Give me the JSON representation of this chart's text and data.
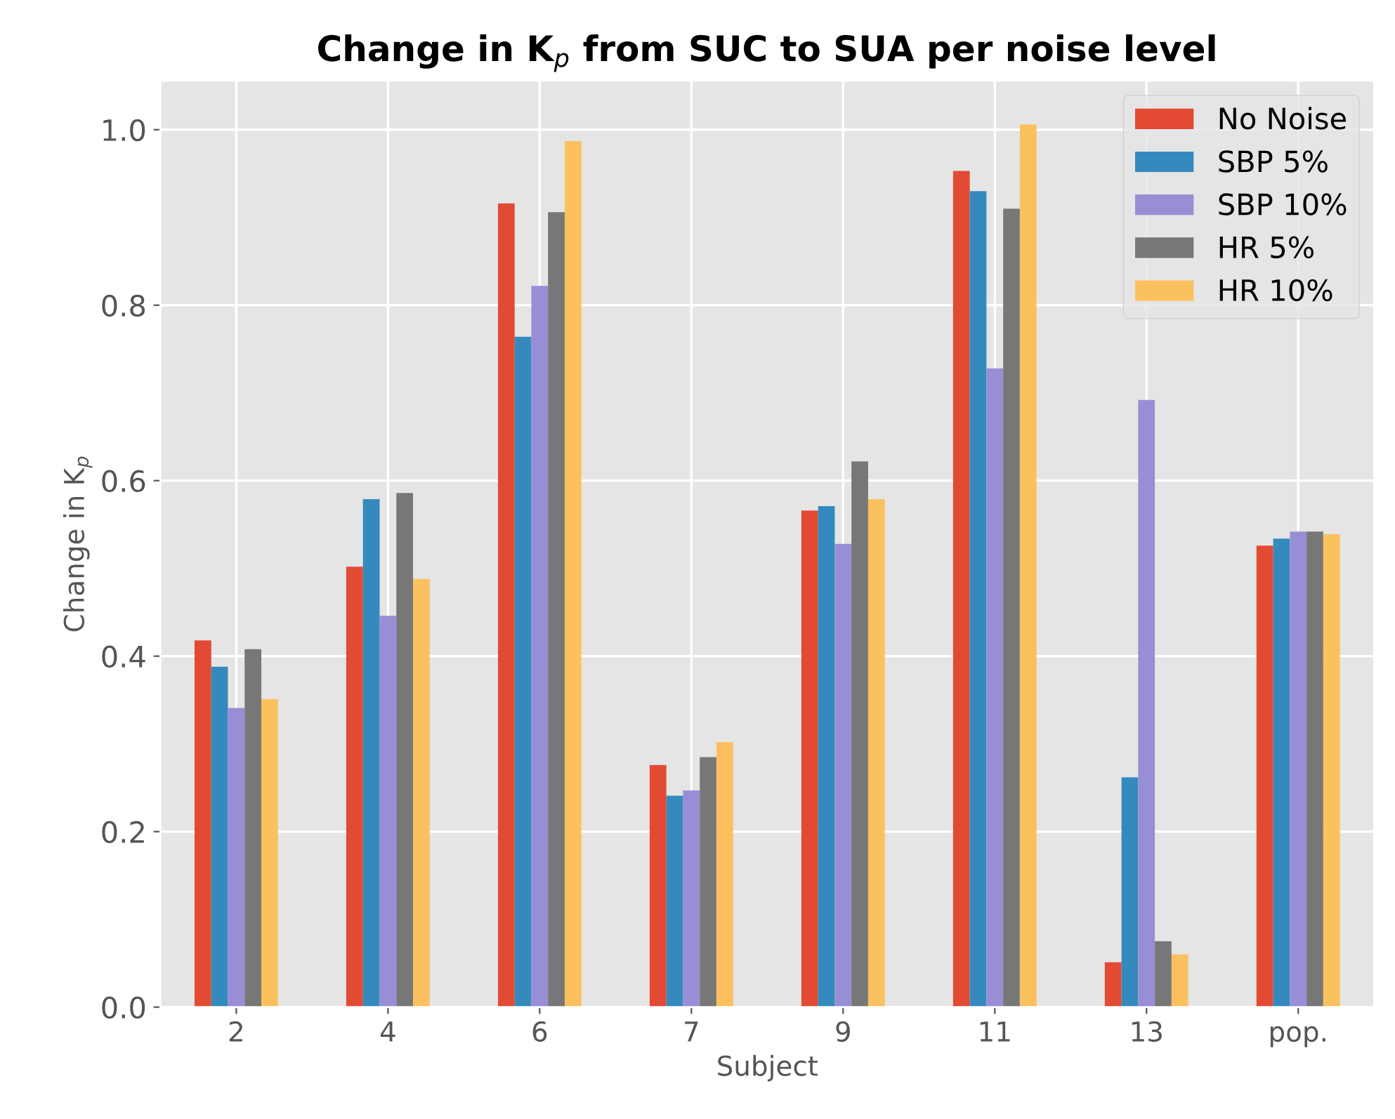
{
  "chart_data": {
    "type": "bar",
    "title": "Change in K$_{p}$ from SUC to SUA per noise level",
    "xlabel": "Subject",
    "ylabel": "Change in K$_{p}$",
    "categories": [
      "2",
      "4",
      "6",
      "7",
      "9",
      "11",
      "13",
      "pop."
    ],
    "series": [
      {
        "name": "No Noise",
        "color": "#e24a33",
        "values": [
          0.418,
          0.502,
          0.916,
          0.276,
          0.566,
          0.953,
          0.051,
          0.526
        ]
      },
      {
        "name": "SBP 5%",
        "color": "#348abd",
        "values": [
          0.388,
          0.579,
          0.764,
          0.241,
          0.571,
          0.93,
          0.262,
          0.534
        ]
      },
      {
        "name": "SBP 10%",
        "color": "#988ed5",
        "values": [
          0.341,
          0.446,
          0.822,
          0.247,
          0.528,
          0.728,
          0.692,
          0.542
        ]
      },
      {
        "name": "HR 5%",
        "color": "#777777",
        "values": [
          0.408,
          0.586,
          0.906,
          0.285,
          0.622,
          0.91,
          0.075,
          0.542
        ]
      },
      {
        "name": "HR 10%",
        "color": "#fbc15e",
        "values": [
          0.351,
          0.488,
          0.987,
          0.302,
          0.579,
          1.006,
          0.06,
          0.539
        ]
      }
    ],
    "ylim": [
      0,
      1.056
    ],
    "yticks": [
      {
        "value": 0,
        "label": "0.0"
      },
      0.2,
      0.4,
      0.6,
      0.8,
      {
        "value": 1,
        "label": "1.0"
      }
    ],
    "grid": true,
    "legend": "top right"
  }
}
